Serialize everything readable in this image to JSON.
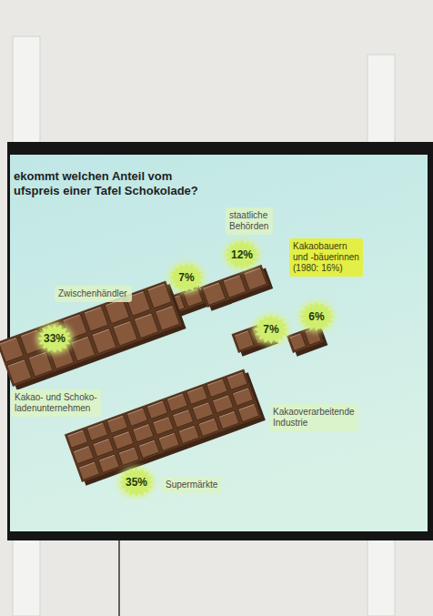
{
  "chart_data": {
    "type": "pictorial",
    "title": "ekommt welchen Anteil vom\nufspreis einer Tafel Schokolade?",
    "categories": [
      "Zwischenhändler",
      "staatliche\nBehörden",
      "Kakaobauern\nund -bäuerinnen\n(1980: 16%)",
      "Kakao- und Schoko-\nladenunternehmen",
      "Kakaoverarbeitende\nIndustrie",
      "Supermärkte"
    ],
    "values": [
      7,
      12,
      6,
      33,
      7,
      35
    ],
    "value_labels": [
      "7%",
      "12%",
      "6%",
      "33%",
      "7%",
      "35%"
    ],
    "data_labels": true,
    "color": "#7b4a2b"
  }
}
